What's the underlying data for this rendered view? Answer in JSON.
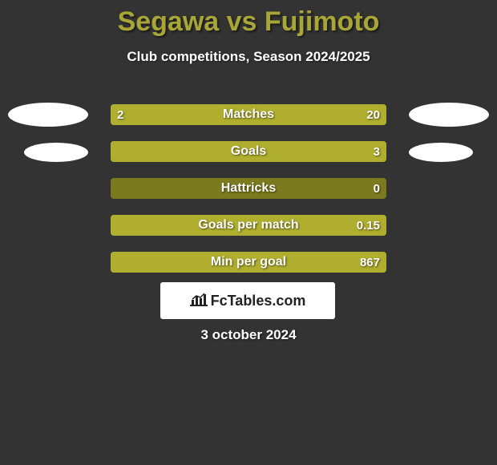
{
  "background_color": "#333333",
  "title": {
    "text": "Segawa vs Fujimoto",
    "color": "#a8a636",
    "fontsize": 34
  },
  "subtitle": {
    "text": "Club competitions, Season 2024/2025",
    "color": "#ffffff",
    "fontsize": 17
  },
  "bar_colors": {
    "left_fill": "#b0ae2f",
    "right_fill": "#7c7a1f",
    "track_bg": "#7c7a1f"
  },
  "ellipses": {
    "row0_left": true,
    "row0_right": true,
    "row1_left": true,
    "row1_right": true,
    "row1_small": true
  },
  "rows": [
    {
      "label": "Matches",
      "left_value": "2",
      "right_value": "20",
      "left_num": 2,
      "right_num": 20,
      "left_pct": 9.09,
      "right_pct": 90.91,
      "show_left_value": true,
      "show_right_value": true
    },
    {
      "label": "Goals",
      "left_value": "",
      "right_value": "3",
      "left_num": 0,
      "right_num": 3,
      "left_pct": 0,
      "right_pct": 100,
      "show_left_value": false,
      "show_right_value": true
    },
    {
      "label": "Hattricks",
      "left_value": "",
      "right_value": "0",
      "left_num": 0,
      "right_num": 0,
      "left_pct": 0,
      "right_pct": 0,
      "show_left_value": false,
      "show_right_value": true
    },
    {
      "label": "Goals per match",
      "left_value": "",
      "right_value": "0.15",
      "left_num": 0,
      "right_num": 0.15,
      "left_pct": 0,
      "right_pct": 100,
      "show_left_value": false,
      "show_right_value": true
    },
    {
      "label": "Min per goal",
      "left_value": "",
      "right_value": "867",
      "left_num": 0,
      "right_num": 867,
      "left_pct": 0,
      "right_pct": 100,
      "show_left_value": false,
      "show_right_value": true
    }
  ],
  "logo": {
    "text": "FcTables.com",
    "box_bg": "#ffffff",
    "text_color": "#222222"
  },
  "date": {
    "text": "3 october 2024",
    "color": "#ffffff",
    "fontsize": 17
  }
}
